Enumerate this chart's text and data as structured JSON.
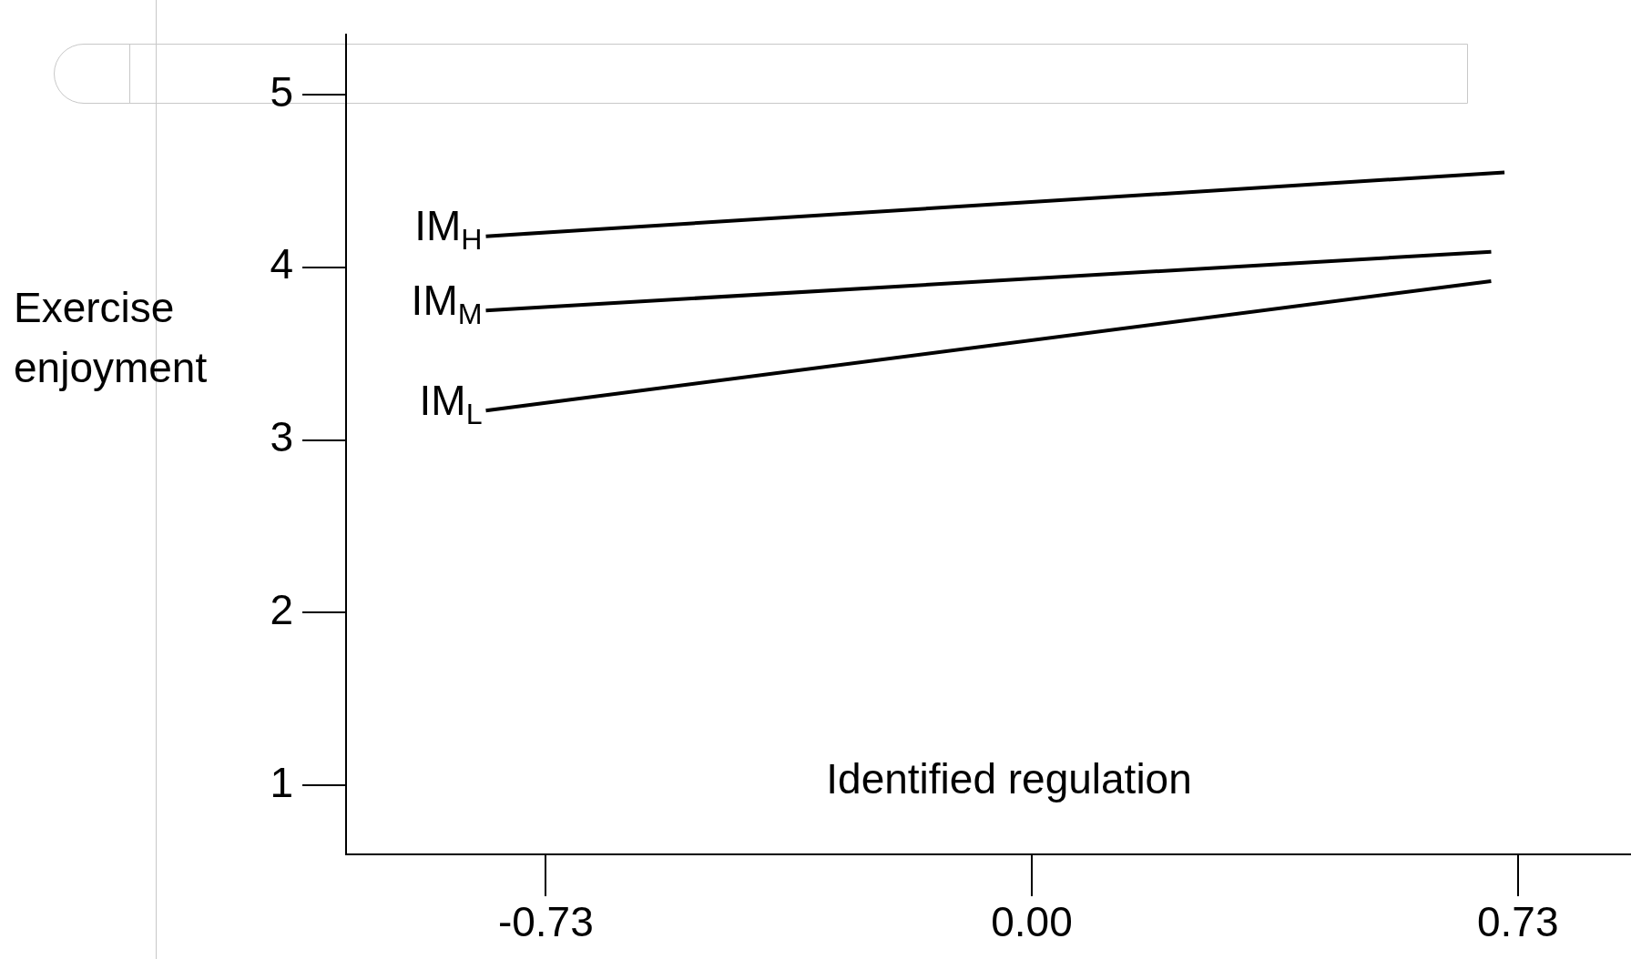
{
  "chart_data": {
    "type": "line",
    "xlabel": "Identified regulation",
    "ylabel": "Exercise enjoyment",
    "xlim": [
      -1.03,
      0.9
    ],
    "xticks": [
      {
        "value": -0.73,
        "label": "-0.73"
      },
      {
        "value": 0,
        "label": "0.00"
      },
      {
        "value": 0.73,
        "label": "0.73"
      }
    ],
    "ylim": [
      0.6,
      5.35
    ],
    "yticks": [
      1,
      2,
      3,
      4,
      5
    ],
    "grid": false,
    "legend": false,
    "marker": "none",
    "line_style": "solid",
    "series": [
      {
        "name": "IM$_{H}$",
        "color": "#000000",
        "x": [
          -0.82,
          0.71
        ],
        "values": [
          4.18,
          4.55
        ]
      },
      {
        "name": "IM$_{M}$",
        "color": "#000000",
        "x": [
          -0.82,
          0.69
        ],
        "values": [
          3.75,
          4.09
        ]
      },
      {
        "name": "IM$_{L}$",
        "color": "#000000",
        "x": [
          -0.82,
          0.69
        ],
        "values": [
          3.17,
          3.92
        ]
      }
    ]
  }
}
